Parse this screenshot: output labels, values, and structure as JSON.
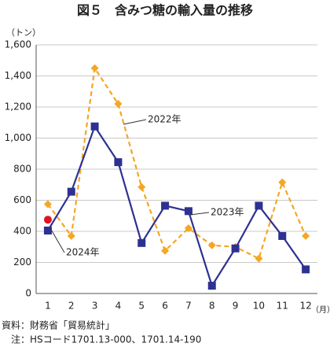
{
  "chart_data": {
    "type": "line",
    "title": "図５　含みつ糖の輸入量の推移",
    "y_unit": "（トン）",
    "x_unit": "（月）",
    "categories": [
      1,
      2,
      3,
      4,
      5,
      6,
      7,
      8,
      9,
      10,
      11,
      12
    ],
    "series": [
      {
        "name": "2022年",
        "color": "#f5a623",
        "style": "dashed",
        "marker": "diamond",
        "values": [
          575,
          370,
          1450,
          1220,
          685,
          275,
          420,
          310,
          300,
          225,
          715,
          370
        ]
      },
      {
        "name": "2023年",
        "color": "#2e3192",
        "style": "solid",
        "marker": "square",
        "values": [
          405,
          655,
          1075,
          845,
          325,
          565,
          530,
          50,
          290,
          565,
          370,
          155
        ]
      },
      {
        "name": "2024年",
        "color": "#e0141e",
        "style": "solid",
        "marker": "circle",
        "values": [
          475,
          null,
          null,
          null,
          null,
          null,
          null,
          null,
          null,
          null,
          null,
          null
        ]
      }
    ],
    "ylim": [
      0,
      1600
    ],
    "yticks": [
      0,
      200,
      400,
      600,
      800,
      {
        "value": 1000,
        "label": "1,000"
      },
      {
        "value": 1200,
        "label": "1,200"
      },
      {
        "value": 1400,
        "label": "1,400"
      },
      {
        "value": 1600,
        "label": "1,600"
      }
    ],
    "grid": true,
    "notes": [
      "資料：財務省「貿易統計」",
      "　注：HSコード1701.13-000、1701.14-190"
    ]
  }
}
